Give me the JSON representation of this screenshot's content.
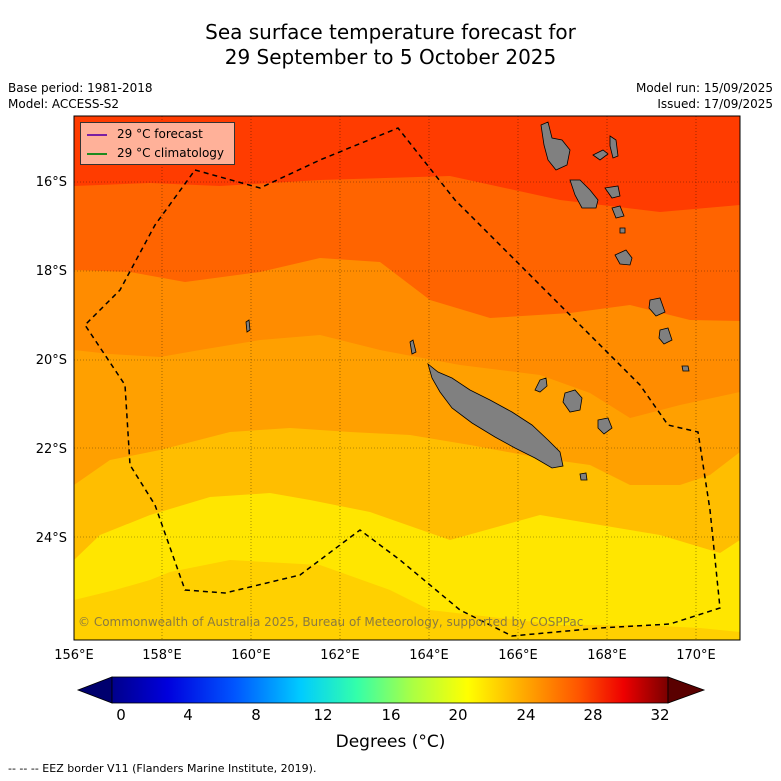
{
  "title_line1": "Sea surface temperature forecast for",
  "title_line2": "29 September to 5 October 2025",
  "meta": {
    "base_period": "Base period: 1981-2018",
    "model": "Model: ACCESS-S2",
    "model_run": "Model run: 15/09/2025",
    "issued": "Issued: 17/09/2025"
  },
  "legend": {
    "forecast_label": "29 °C  forecast",
    "forecast_color": "#7b1fa2",
    "climatology_label": "29 °C  climatology",
    "climatology_color": "#1e8a1e"
  },
  "copyright": "© Commonwealth of Australia 2025, Bureau of Meteorology, supported by COSPPac",
  "lat_labels": [
    "16°S",
    "18°S",
    "20°S",
    "22°S",
    "24°S"
  ],
  "lon_labels": [
    "156°E",
    "158°E",
    "160°E",
    "162°E",
    "164°E",
    "166°E",
    "168°E",
    "170°E"
  ],
  "colorbar": {
    "tick_labels": [
      "0",
      "4",
      "8",
      "12",
      "16",
      "20",
      "24",
      "28",
      "32"
    ],
    "label": "Degrees (°C)"
  },
  "footer": "--  --  -- EEZ border V11 (Flanders Marine Institute, 2019).",
  "colors": {
    "land": "#808080",
    "sst_29": "#ff3c00",
    "sst_28": "#ff6400",
    "sst_27": "#ff8c00",
    "sst_26": "#ffa000",
    "sst_25": "#ffbe00",
    "sst_24": "#ffe600"
  }
}
